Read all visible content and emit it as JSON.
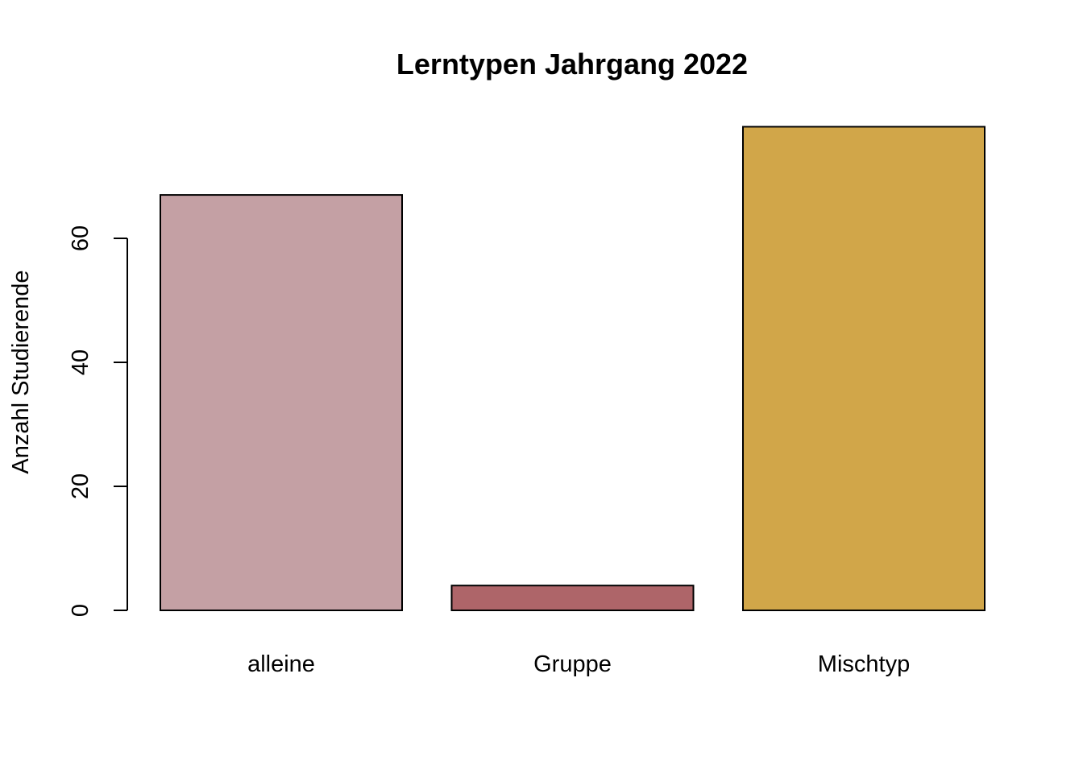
{
  "chart_data": {
    "type": "bar",
    "title": "Lerntypen Jahrgang 2022",
    "xlabel": "",
    "ylabel": "Anzahl Studierende",
    "categories": [
      "alleine",
      "Gruppe",
      "Mischtyp"
    ],
    "values": [
      67,
      4,
      78
    ],
    "colors": [
      "#C4A0A4",
      "#AE6569",
      "#D1A649"
    ],
    "ylim": [
      0,
      78
    ],
    "yticks": [
      0,
      20,
      40,
      60
    ],
    "ytick_labels": [
      "0",
      "20",
      "40",
      "60"
    ],
    "grid": false,
    "legend": "none"
  }
}
